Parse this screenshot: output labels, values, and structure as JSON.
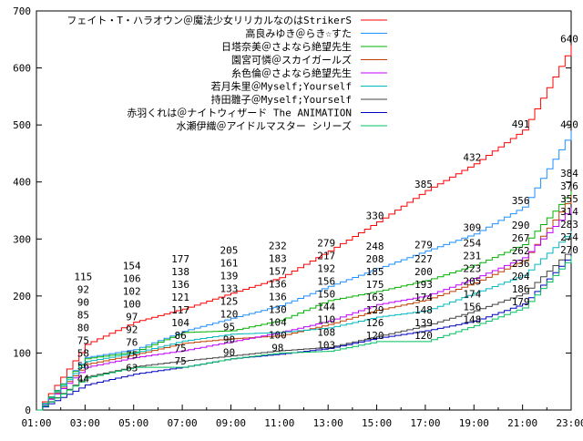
{
  "chart_data": {
    "type": "line",
    "title": "",
    "xlabel": "",
    "ylabel": "",
    "ylim": [
      0,
      700
    ],
    "yticks": [
      "0",
      "100",
      "200",
      "300",
      "400",
      "500",
      "600",
      "700"
    ],
    "xticks": [
      "01:00",
      "03:00",
      "05:00",
      "07:00",
      "09:00",
      "11:00",
      "13:00",
      "15:00",
      "17:00",
      "19:00",
      "21:00",
      "23:00"
    ],
    "grid": false,
    "legend": "top-left",
    "x": [
      "01:00",
      "03:00",
      "05:00",
      "07:00",
      "09:00",
      "11:00",
      "13:00",
      "15:00",
      "17:00",
      "19:00",
      "21:00",
      "23:00"
    ],
    "series": [
      {
        "name": "フェイト・T・ハラオウン＠魔法少女リリカルなのはStrikerS",
        "color": "#ff0000",
        "values": [
          0,
          115,
          154,
          177,
          205,
          232,
          279,
          330,
          385,
          432,
          491,
          640
        ]
      },
      {
        "name": "高良みゆき＠らき☆すた",
        "color": "#1e8fff",
        "values": [
          0,
          92,
          106,
          138,
          161,
          183,
          217,
          248,
          279,
          309,
          356,
          490
        ]
      },
      {
        "name": "日塔奈美＠さよなら絶望先生",
        "color": "#00b000",
        "values": [
          0,
          90,
          102,
          136,
          139,
          157,
          192,
          208,
          227,
          254,
          290,
          384
        ]
      },
      {
        "name": "園宮可憐＠スカイガールズ",
        "color": "#c04000",
        "values": [
          0,
          80,
          97,
          117,
          125,
          130,
          150,
          175,
          193,
          223,
          262,
          376
        ]
      },
      {
        "name": "糸色倫＠さよなら絶望先生",
        "color": "#c000ff",
        "values": [
          0,
          75,
          92,
          104,
          120,
          136,
          156,
          185,
          200,
          231,
          267,
          355
        ]
      },
      {
        "name": "若月朱里＠Myself;Yourself",
        "color": "#00b8c0",
        "values": [
          0,
          85,
          100,
          121,
          133,
          136,
          144,
          163,
          174,
          205,
          236,
          314
        ]
      },
      {
        "name": "持田雛子＠Myself;Yourself",
        "color": "#404040",
        "values": [
          0,
          58,
          76,
          86,
          95,
          104,
          110,
          129,
          148,
          174,
          204,
          283
        ]
      },
      {
        "name": "赤羽くれは＠ナイトウィザード The ANIMATION",
        "color": "#0000c0",
        "values": [
          0,
          44,
          63,
          75,
          90,
          98,
          108,
          126,
          139,
          156,
          186,
          274
        ]
      },
      {
        "name": "水瀬伊織＠アイドルマスター シリーズ",
        "color": "#00c060",
        "values": [
          0,
          56,
          75,
          75,
          90,
          100,
          103,
          120,
          120,
          148,
          179,
          270
        ]
      }
    ]
  }
}
